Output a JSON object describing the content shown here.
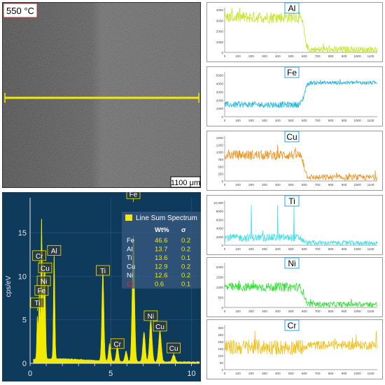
{
  "sem": {
    "temperature_label": "550 °C",
    "scale_bar_label": "1100 μm",
    "line_color": "#f2ea00"
  },
  "line_profiles": {
    "x_ticks": [
      0,
      100,
      200,
      300,
      400,
      500,
      600,
      700,
      800,
      900,
      1000,
      1100
    ],
    "panels": [
      {
        "element": "Al",
        "color": "#c6e629",
        "y_ticks": [
          0,
          1000,
          2000,
          3000,
          4000
        ],
        "y_max": 4200,
        "start_level": 3300,
        "end_level": 250,
        "transition": 600,
        "noise": 550
      },
      {
        "element": "Fe",
        "color": "#22b7e6",
        "y_ticks": [
          0,
          1000,
          2000,
          3000,
          4000,
          5000
        ],
        "y_max": 5400,
        "start_level": 1450,
        "end_level": 4100,
        "transition": 600,
        "noise": 380
      },
      {
        "element": "Cu",
        "color": "#f09422",
        "y_ticks": [
          0,
          250,
          500,
          750,
          1000,
          1250,
          1500
        ],
        "y_max": 1550,
        "start_level": 900,
        "end_level": 120,
        "transition": 600,
        "noise": 170
      },
      {
        "element": "Ti",
        "color": "#40e0ec",
        "y_ticks": [
          0,
          2000,
          4000,
          6000,
          8000,
          10000
        ],
        "y_max": 10500,
        "start_level": 1800,
        "end_level": 550,
        "transition": 590,
        "noise": 900
      },
      {
        "element": "Ni",
        "color": "#2de22f",
        "y_ticks": [
          0,
          500,
          1000,
          1500,
          2000
        ],
        "y_max": 2200,
        "start_level": 1000,
        "end_level": 150,
        "transition": 600,
        "noise": 220
      },
      {
        "element": "Cr",
        "color": "#f2c01e",
        "y_ticks": [
          0,
          50,
          100,
          150,
          200,
          250,
          300
        ],
        "y_max": 320,
        "start_level": 160,
        "end_level": 175,
        "transition": 600,
        "noise": 55
      }
    ]
  },
  "chart_data": {
    "type": "area",
    "title": "Line Sum Spectrum",
    "xlabel": "",
    "ylabel": "cps/eV",
    "xlim": [
      0,
      10.5
    ],
    "ylim": [
      0,
      19
    ],
    "x_ticks": [
      0,
      5,
      10
    ],
    "y_ticks": [
      0,
      5,
      10,
      15
    ],
    "peak_labels": [
      {
        "label": "Fe",
        "x": 6.4,
        "y": 19.3
      },
      {
        "label": "Cr",
        "x": 0.57,
        "y": 12.2
      },
      {
        "label": "Cu",
        "x": 0.93,
        "y": 10.8
      },
      {
        "label": "Al",
        "x": 1.49,
        "y": 12.8
      },
      {
        "label": "Ni",
        "x": 0.85,
        "y": 9.3
      },
      {
        "label": "Fe",
        "x": 0.71,
        "y": 8.2
      },
      {
        "label": "Ti",
        "x": 0.45,
        "y": 6.8
      },
      {
        "label": "Ti",
        "x": 4.51,
        "y": 10.5
      },
      {
        "label": "Cr",
        "x": 5.41,
        "y": 2.1
      },
      {
        "label": "Ni",
        "x": 7.48,
        "y": 5.3
      },
      {
        "label": "Cu",
        "x": 8.05,
        "y": 4.1
      },
      {
        "label": "Cu",
        "x": 8.9,
        "y": 1.6
      }
    ],
    "peaks": [
      {
        "x": 0.45,
        "y": 5
      },
      {
        "x": 0.57,
        "y": 8
      },
      {
        "x": 0.71,
        "y": 16.5
      },
      {
        "x": 0.85,
        "y": 9
      },
      {
        "x": 0.93,
        "y": 7
      },
      {
        "x": 1.49,
        "y": 12
      },
      {
        "x": 4.51,
        "y": 10.5
      },
      {
        "x": 4.93,
        "y": 2
      },
      {
        "x": 5.41,
        "y": 1.8
      },
      {
        "x": 5.95,
        "y": 1.2
      },
      {
        "x": 6.4,
        "y": 14.5
      },
      {
        "x": 7.06,
        "y": 3.4
      },
      {
        "x": 7.48,
        "y": 4.8
      },
      {
        "x": 8.05,
        "y": 3.6
      },
      {
        "x": 8.9,
        "y": 0.8
      }
    ],
    "legend": {
      "entry": "Line Sum Spectrum",
      "columns": [
        "Wt%",
        "σ"
      ],
      "rows": [
        {
          "element": "Fe",
          "wt": "46.6",
          "sigma": "0.2"
        },
        {
          "element": "Al",
          "wt": "13.7",
          "sigma": "0.2"
        },
        {
          "element": "Ti",
          "wt": "13.6",
          "sigma": "0.1"
        },
        {
          "element": "Cu",
          "wt": "12.9",
          "sigma": "0.2"
        },
        {
          "element": "Ni",
          "wt": "12.6",
          "sigma": "0.2"
        },
        {
          "element": "Cr",
          "wt": "0.6",
          "sigma": "0.1"
        }
      ]
    },
    "colors": {
      "background": "#0e3a5c",
      "fill": "#f2ea00",
      "cr_text": "#ff2020"
    }
  }
}
